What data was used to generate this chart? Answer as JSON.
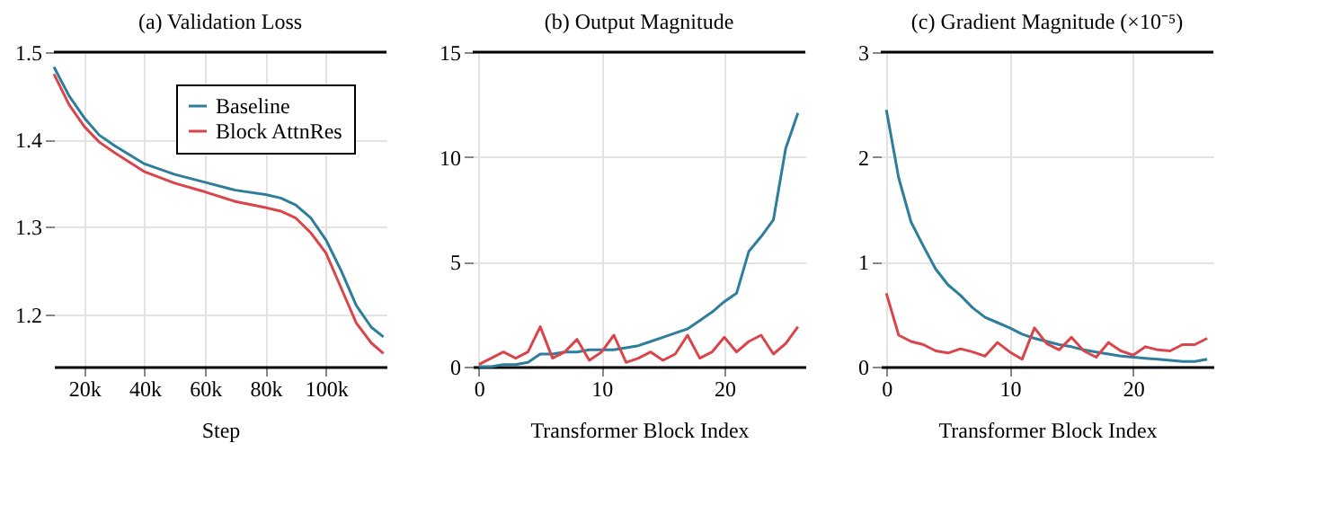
{
  "chart_data": [
    {
      "type": "line",
      "title": "(a) Validation Loss",
      "xlabel": "Step",
      "xlim": [
        10000,
        120000
      ],
      "xticks": [
        {
          "value": 20000,
          "label": "20k"
        },
        {
          "value": 40000,
          "label": "40k"
        },
        {
          "value": 60000,
          "label": "60k"
        },
        {
          "value": 80000,
          "label": "80k"
        },
        {
          "value": 100000,
          "label": "100k"
        }
      ],
      "ylim": [
        1.14,
        1.5
      ],
      "yticks": [
        1.2,
        1.3,
        1.4,
        1.5
      ],
      "grid": true,
      "legend": "top right",
      "marker": "none",
      "line_style": "solid",
      "x": [
        10000,
        15000,
        20000,
        25000,
        30000,
        40000,
        50000,
        60000,
        70000,
        80000,
        85000,
        90000,
        95000,
        100000,
        105000,
        110000,
        115000,
        119000
      ],
      "series": [
        {
          "name": "Baseline",
          "color": "#2e7d9a",
          "values": [
            1.483,
            1.45,
            1.425,
            1.405,
            1.393,
            1.372,
            1.36,
            1.351,
            1.342,
            1.337,
            1.333,
            1.325,
            1.31,
            1.285,
            1.25,
            1.21,
            1.185,
            1.174
          ]
        },
        {
          "name": "Block AttnRes",
          "color": "#d9454a",
          "values": [
            1.475,
            1.44,
            1.415,
            1.397,
            1.385,
            1.363,
            1.35,
            1.34,
            1.329,
            1.322,
            1.318,
            1.31,
            1.293,
            1.27,
            1.23,
            1.19,
            1.167,
            1.155
          ]
        }
      ]
    },
    {
      "type": "line",
      "title": "(b) Output Magnitude",
      "xlabel": "Transformer Block Index",
      "xlim": [
        -0.5,
        26.6
      ],
      "xticks": [
        0,
        10,
        20
      ],
      "ylim": [
        0,
        15
      ],
      "yticks": [
        0,
        5,
        10,
        15
      ],
      "grid": true,
      "legend": false,
      "marker": "none",
      "line_style": "solid",
      "x": [
        0,
        1,
        2,
        3,
        4,
        5,
        6,
        7,
        8,
        9,
        10,
        11,
        12,
        13,
        14,
        15,
        16,
        17,
        18,
        19,
        20,
        21,
        22,
        23,
        24,
        25,
        26
      ],
      "series": [
        {
          "color": "#2e7d9a",
          "values": [
            0,
            0,
            0.1,
            0.1,
            0.2,
            0.6,
            0.6,
            0.7,
            0.7,
            0.8,
            0.8,
            0.8,
            0.9,
            1.0,
            1.2,
            1.4,
            1.6,
            1.8,
            2.2,
            2.6,
            3.1,
            3.5,
            5.5,
            6.2,
            7.0,
            10.4,
            12.1
          ]
        },
        {
          "color": "#d9454a",
          "values": [
            0.1,
            0.4,
            0.7,
            0.4,
            0.7,
            1.9,
            0.4,
            0.7,
            1.3,
            0.3,
            0.7,
            1.5,
            0.2,
            0.4,
            0.7,
            0.3,
            0.6,
            1.5,
            0.4,
            0.7,
            1.4,
            0.7,
            1.2,
            1.5,
            0.6,
            1.1,
            1.9
          ]
        }
      ]
    },
    {
      "type": "line",
      "title": "(c) Gradient Magnitude (×10⁻⁵)",
      "xlabel": "Transformer Block Index",
      "xlim": [
        -0.45,
        26.5
      ],
      "xticks": [
        0,
        10,
        20
      ],
      "ylim": [
        0,
        3
      ],
      "yticks": [
        0,
        1,
        2,
        3
      ],
      "grid": true,
      "legend": false,
      "marker": "none",
      "line_style": "solid",
      "x": [
        0,
        1,
        2,
        3,
        4,
        5,
        6,
        7,
        8,
        9,
        10,
        11,
        12,
        13,
        14,
        15,
        16,
        17,
        18,
        19,
        20,
        21,
        22,
        23,
        24,
        25,
        26
      ],
      "series": [
        {
          "color": "#2e7d9a",
          "values": [
            2.45,
            1.8,
            1.38,
            1.15,
            0.93,
            0.78,
            0.68,
            0.56,
            0.47,
            0.42,
            0.37,
            0.31,
            0.27,
            0.24,
            0.21,
            0.19,
            0.16,
            0.14,
            0.12,
            0.1,
            0.09,
            0.08,
            0.07,
            0.06,
            0.05,
            0.05,
            0.07
          ]
        },
        {
          "color": "#d9454a",
          "values": [
            0.7,
            0.3,
            0.24,
            0.21,
            0.15,
            0.13,
            0.17,
            0.14,
            0.1,
            0.23,
            0.14,
            0.07,
            0.37,
            0.22,
            0.16,
            0.28,
            0.15,
            0.09,
            0.23,
            0.15,
            0.11,
            0.19,
            0.16,
            0.15,
            0.21,
            0.21,
            0.27
          ]
        }
      ]
    }
  ]
}
